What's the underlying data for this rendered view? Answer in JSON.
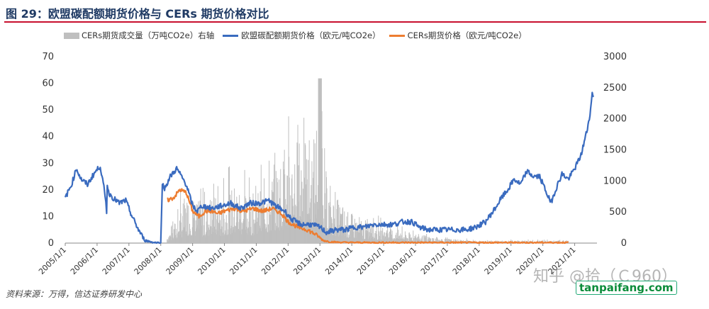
{
  "figure": {
    "title": "图 29：欧盟碳配额期货价格与 CERs 期货价格对比",
    "source": "资料来源：万得，信达证券研发中心"
  },
  "watermarks": {
    "zhihu": "知乎 @拾（Ｃ960）",
    "site": "tanpaifang.com"
  },
  "colors": {
    "eua": "#3a6bbf",
    "cer": "#ed7d31",
    "volume": "#bfbfbf",
    "title_rule": "#c8102e"
  },
  "chart_data": {
    "type": "line",
    "legend_placement": "top",
    "grid": false,
    "x_tick_labels": [
      "2005/1/1",
      "2006/1/1",
      "2007/1/1",
      "2008/1/1",
      "2009/1/1",
      "2010/1/1",
      "2011/1/1",
      "2012/1/1",
      "2013/1/1",
      "2014/1/1",
      "2015/1/1",
      "2016/1/1",
      "2017/1/1",
      "2018/1/1",
      "2019/1/1",
      "2020/1/1",
      "2021/1/1"
    ],
    "x_range": [
      2005.0,
      2021.7
    ],
    "y_left": {
      "ylim": [
        0,
        70
      ],
      "ticks": [
        0,
        10,
        20,
        30,
        40,
        50,
        60,
        70
      ]
    },
    "y_right": {
      "ylim": [
        0,
        3000
      ],
      "ticks": [
        0,
        500,
        1000,
        1500,
        2000,
        2500,
        3000
      ],
      "label": "右轴"
    },
    "series": [
      {
        "name": "CERs期货成交量（万吨CO2e）右轴",
        "type": "bar",
        "axis": "right",
        "envelope_x": [
          2008.2,
          2008.4,
          2008.6,
          2008.8,
          2009.0,
          2009.2,
          2009.4,
          2009.6,
          2009.8,
          2010.0,
          2010.2,
          2010.4,
          2010.6,
          2010.8,
          2011.0,
          2011.2,
          2011.4,
          2011.6,
          2011.8,
          2012.0,
          2012.2,
          2012.4,
          2012.6,
          2012.8,
          2013.0,
          2013.1,
          2013.3,
          2013.5,
          2013.7,
          2013.9,
          2014.2,
          2014.5,
          2014.8,
          2015.2,
          2015.6,
          2016.0,
          2016.4,
          2016.8,
          2017.3,
          2018.0,
          2019.0,
          2020.0,
          2020.8
        ],
        "envelope_y": [
          150,
          300,
          550,
          800,
          750,
          700,
          650,
          850,
          700,
          750,
          900,
          1000,
          850,
          800,
          800,
          950,
          1100,
          1300,
          1400,
          1500,
          1800,
          1700,
          1600,
          1750,
          2650,
          1400,
          900,
          750,
          650,
          500,
          450,
          350,
          300,
          250,
          200,
          150,
          120,
          90,
          60,
          40,
          40,
          40,
          40
        ]
      },
      {
        "name": "欧盟碳配额期货价格（欧元/吨CO2e）",
        "type": "line",
        "axis": "left",
        "x": [
          2005.0,
          2005.2,
          2005.35,
          2005.5,
          2005.7,
          2005.9,
          2006.1,
          2006.25,
          2006.3,
          2006.32,
          2006.36,
          2006.5,
          2006.7,
          2006.9,
          2007.1,
          2007.3,
          2007.5,
          2007.8,
          2007.95,
          2008.0,
          2008.05,
          2008.1,
          2008.3,
          2008.5,
          2008.6,
          2008.8,
          2009.0,
          2009.15,
          2009.3,
          2009.6,
          2009.9,
          2010.2,
          2010.5,
          2010.8,
          2011.1,
          2011.4,
          2011.6,
          2011.9,
          2012.1,
          2012.4,
          2012.7,
          2013.0,
          2013.2,
          2013.5,
          2013.8,
          2014.1,
          2014.4,
          2014.7,
          2015.0,
          2015.3,
          2015.6,
          2015.9,
          2016.1,
          2016.4,
          2016.7,
          2017.0,
          2017.3,
          2017.6,
          2017.9,
          2018.2,
          2018.5,
          2018.7,
          2018.9,
          2019.1,
          2019.3,
          2019.5,
          2019.7,
          2019.9,
          2020.15,
          2020.25,
          2020.4,
          2020.6,
          2020.8,
          2021.0,
          2021.2,
          2021.4,
          2021.5,
          2021.55,
          2021.6
        ],
        "y": [
          17,
          22,
          28,
          24,
          22,
          26,
          29,
          18,
          12,
          22,
          19,
          17,
          15,
          16,
          10,
          5,
          1,
          0.2,
          0.1,
          0.1,
          23,
          20,
          25,
          28,
          26,
          22,
          14,
          12,
          14,
          13,
          14,
          15,
          13,
          15,
          15,
          16,
          14,
          12,
          9,
          7,
          7,
          6,
          4,
          5,
          5,
          6,
          6,
          7,
          7,
          7,
          8,
          8,
          6,
          5,
          5,
          5,
          5,
          5,
          6,
          8,
          13,
          17,
          20,
          24,
          22,
          27,
          25,
          25,
          18,
          15,
          20,
          26,
          24,
          28,
          33,
          43,
          50,
          56,
          55
        ]
      },
      {
        "name": "CERs期货价格（欧元/吨CO2e）",
        "type": "line",
        "axis": "left",
        "x": [
          2008.2,
          2008.4,
          2008.6,
          2008.8,
          2009.0,
          2009.2,
          2009.4,
          2009.6,
          2009.8,
          2010.0,
          2010.3,
          2010.6,
          2010.9,
          2011.2,
          2011.5,
          2011.8,
          2012.0,
          2012.3,
          2012.6,
          2012.9,
          2013.1,
          2013.3,
          2013.6,
          2014.0,
          2015.0,
          2016.0,
          2017.0,
          2018.0,
          2019.0,
          2020.0,
          2020.8
        ],
        "y": [
          16,
          17,
          20,
          19,
          12,
          10,
          12,
          12,
          11,
          12,
          13,
          12,
          13,
          12,
          13,
          11,
          8,
          6,
          5,
          3,
          1,
          0.5,
          0.3,
          0.2,
          0.2,
          0.2,
          0.2,
          0.2,
          0.2,
          0.2,
          0.2
        ]
      }
    ]
  }
}
